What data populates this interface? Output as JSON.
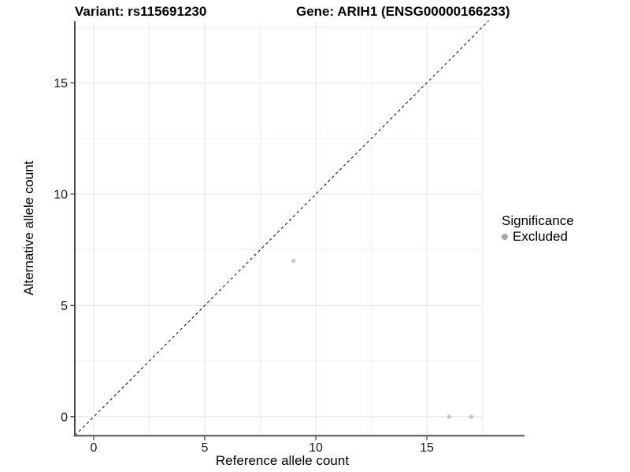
{
  "header": {
    "variant_title": "Variant: rs115691230",
    "gene_title": "Gene: ARIH1 (ENSG00000166233)"
  },
  "axes": {
    "x": {
      "label": "Reference allele count",
      "ticks": [
        0,
        5,
        10,
        15
      ],
      "minor_ticks": [
        2.5,
        7.5,
        12.5,
        17.5
      ],
      "range": [
        -0.85,
        17.85
      ]
    },
    "y": {
      "label": "Alternative allele count",
      "ticks": [
        0,
        5,
        10,
        15
      ],
      "minor_ticks": [
        2.5,
        7.5,
        12.5,
        17.5
      ],
      "range": [
        -0.85,
        17.8
      ]
    }
  },
  "legend": {
    "title": "Significance",
    "items": [
      {
        "label": "Excluded",
        "color": "#a9a9a9"
      }
    ]
  },
  "chart_data": {
    "type": "scatter",
    "titles": [
      "Variant: rs115691230",
      "Gene: ARIH1 (ENSG00000166233)"
    ],
    "xlabel": "Reference allele count",
    "ylabel": "Alternative allele count",
    "xlim": [
      -0.85,
      17.85
    ],
    "ylim": [
      -0.85,
      17.8
    ],
    "grid": true,
    "legend_position": "right",
    "series": [
      {
        "name": "Excluded",
        "color": "#c3c3c3",
        "points": [
          {
            "x": 9,
            "y": 7
          },
          {
            "x": 16,
            "y": 0
          },
          {
            "x": 17,
            "y": 0
          }
        ]
      }
    ],
    "reference_line": {
      "type": "identity",
      "slope": 1,
      "intercept": 0,
      "style": "dashed",
      "color": "#1a1a1a"
    }
  },
  "style_colors": {
    "grid_major": "#e8e8e8",
    "grid_minor": "#f2f2f2",
    "axis_line_y": "#000000",
    "axis_line_x": "#6b6b6b",
    "tick": "#333333",
    "tick_label": "#1a1a1a"
  }
}
